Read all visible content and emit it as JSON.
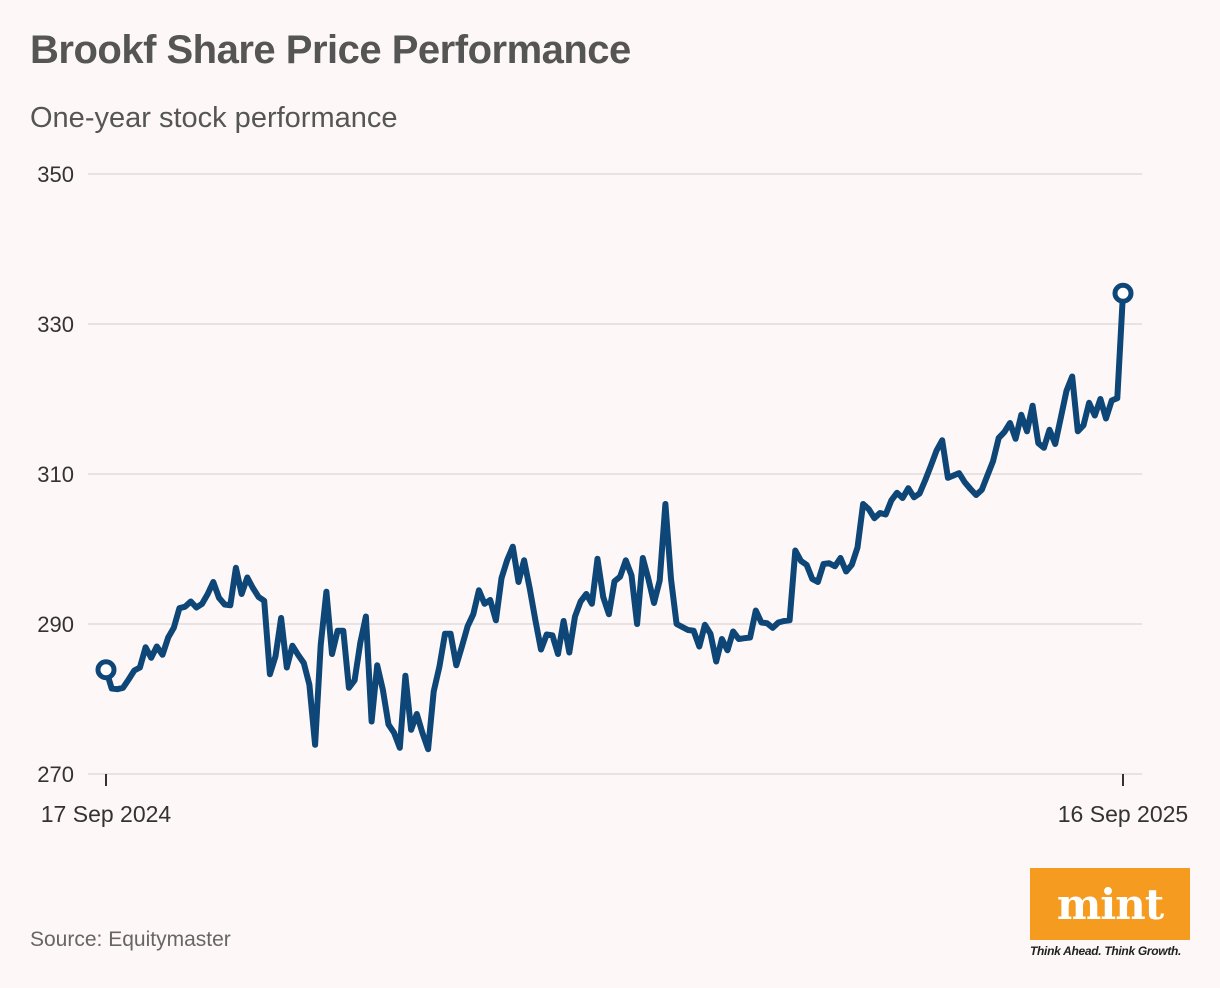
{
  "header": {
    "title": "Brookf Share Price Performance",
    "subtitle": "One-year stock performance"
  },
  "footer": {
    "source": "Source: Equitymaster",
    "logo_text": "mint",
    "tagline": "Think Ahead. Think Growth."
  },
  "colors": {
    "background": "#fdf8f7",
    "line": "#0d4677",
    "grid": "#e2dcdc",
    "logo_bg": "#f59b20"
  },
  "chart_data": {
    "type": "line",
    "title": "Brookf Share Price Performance",
    "xlabel": "",
    "ylabel": "",
    "ylim": [
      270,
      350
    ],
    "yticks": [
      350,
      330,
      310,
      290,
      270
    ],
    "xtick_labels": [
      "17 Sep 2024",
      "16 Sep 2025"
    ],
    "grid": true,
    "legend": "none",
    "series": [
      {
        "values": [
          283.9,
          281.4,
          281.3,
          281.5,
          282.6,
          283.8,
          284.2,
          286.9,
          285.5,
          287.0,
          285.9,
          288.2,
          289.5,
          292.1,
          292.3,
          293.0,
          292.2,
          292.7,
          294.0,
          295.6,
          293.5,
          292.6,
          292.5,
          297.5,
          294.0,
          296.2,
          294.8,
          293.6,
          293.1,
          283.3,
          285.7,
          290.8,
          284.2,
          287.1,
          285.9,
          284.8,
          281.9,
          273.9,
          287.2,
          294.3,
          286.0,
          289.1,
          289.1,
          281.5,
          282.5,
          287.5,
          291.0,
          277.0,
          284.5,
          281.2,
          276.6,
          275.5,
          273.5,
          283.1,
          275.9,
          278.0,
          275.5,
          273.3,
          281.0,
          284.3,
          288.7,
          288.7,
          284.5,
          287.0,
          289.7,
          291.3,
          294.5,
          292.7,
          293.2,
          290.5,
          296.1,
          298.5,
          300.3,
          295.6,
          298.5,
          294.7,
          290.5,
          286.6,
          288.6,
          288.5,
          286.0,
          290.4,
          286.2,
          291.0,
          293.0,
          294.0,
          292.7,
          298.7,
          293.6,
          291.3,
          295.7,
          296.3,
          298.5,
          296.5,
          290.0,
          298.8,
          296.0,
          292.8,
          295.8,
          306.0,
          296.0,
          290.0,
          289.6,
          289.2,
          289.1,
          287.0,
          289.9,
          288.7,
          285.0,
          288.0,
          286.5,
          289.0,
          288.0,
          288.1,
          288.2,
          291.8,
          290.2,
          290.1,
          289.5,
          290.2,
          290.4,
          290.5,
          299.8,
          298.4,
          297.9,
          296.0,
          295.6,
          298.0,
          298.1,
          297.7,
          298.8,
          297.0,
          297.9,
          300.2,
          306.0,
          305.3,
          304.1,
          304.8,
          304.6,
          306.5,
          307.5,
          306.8,
          308.1,
          306.9,
          307.4,
          309.2,
          311.1,
          313.1,
          314.5,
          309.5,
          309.8,
          310.1,
          308.9,
          308.0,
          307.2,
          307.9,
          309.8,
          311.7,
          314.8,
          315.6,
          316.8,
          314.7,
          317.9,
          315.7,
          319.1,
          314.1,
          313.5,
          315.9,
          314.0,
          317.5,
          321.1,
          323.0,
          315.7,
          316.5,
          319.5,
          317.8,
          320.0,
          317.4,
          319.8,
          320.1,
          334.1
        ]
      }
    ]
  }
}
